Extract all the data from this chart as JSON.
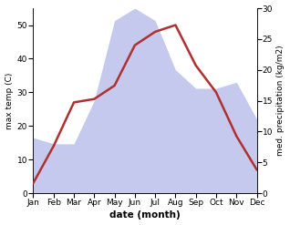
{
  "months": [
    "Jan",
    "Feb",
    "Mar",
    "Apr",
    "May",
    "Jun",
    "Jul",
    "Aug",
    "Sep",
    "Oct",
    "Nov",
    "Dec"
  ],
  "temp": [
    3,
    14,
    27,
    28,
    32,
    44,
    48,
    50,
    38,
    30,
    17,
    7
  ],
  "precip": [
    9,
    8,
    8,
    15,
    28,
    30,
    28,
    20,
    17,
    17,
    18,
    12
  ],
  "temp_color": "#b03030",
  "precip_color": "#b0b8e8",
  "temp_ylim": [
    0,
    55
  ],
  "precip_ylim": [
    0,
    30
  ],
  "xlabel": "date (month)",
  "ylabel_left": "max temp (C)",
  "ylabel_right": "med. precipitation (kg/m2)",
  "temp_linewidth": 1.8,
  "yticks_left": [
    0,
    10,
    20,
    30,
    40,
    50
  ],
  "yticks_right": [
    0,
    5,
    10,
    15,
    20,
    25,
    30
  ],
  "fontsize_ticks": 6.5,
  "fontsize_labels": 6.5,
  "fontsize_xlabel": 7.5
}
